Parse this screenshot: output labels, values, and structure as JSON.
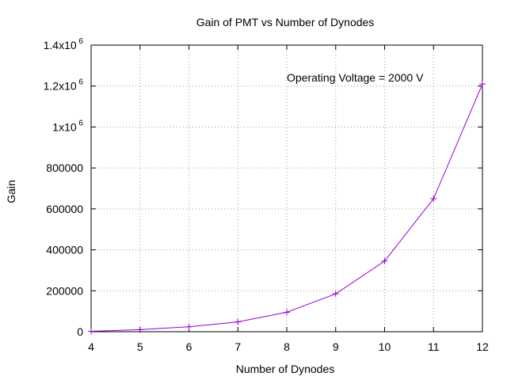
{
  "chart_data": {
    "type": "line",
    "title": "Gain of PMT vs Number of Dynodes",
    "xlabel": "Number of Dynodes",
    "ylabel": "Gain",
    "annotation": "Operating Voltage = 2000 V",
    "x": [
      4,
      5,
      6,
      7,
      8,
      9,
      10,
      11,
      12
    ],
    "series": [
      {
        "values": [
          2000,
          10000,
          24000,
          48000,
          95000,
          185000,
          345000,
          650000,
          1210000
        ],
        "color": "#9400d3"
      }
    ],
    "xlim": [
      4,
      12
    ],
    "ylim": [
      0,
      1400000
    ],
    "x_ticks": [
      {
        "value": 4,
        "label": "4"
      },
      {
        "value": 5,
        "label": "5"
      },
      {
        "value": 6,
        "label": "6"
      },
      {
        "value": 7,
        "label": "7"
      },
      {
        "value": 8,
        "label": "8"
      },
      {
        "value": 9,
        "label": "9"
      },
      {
        "value": 10,
        "label": "10"
      },
      {
        "value": 11,
        "label": "11"
      },
      {
        "value": 12,
        "label": "12"
      }
    ],
    "y_ticks": [
      {
        "value": 0,
        "label": "0"
      },
      {
        "value": 200000,
        "label": "200000"
      },
      {
        "value": 400000,
        "label": "400000"
      },
      {
        "value": 600000,
        "label": "600000"
      },
      {
        "value": 800000,
        "label": "800000"
      },
      {
        "value": 1000000,
        "label": "1x10",
        "exp": "6"
      },
      {
        "value": 1200000,
        "label": "1.2x10",
        "exp": "6"
      },
      {
        "value": 1400000,
        "label": "1.4x10",
        "exp": "6"
      }
    ],
    "grid": true,
    "marker": "plus"
  }
}
